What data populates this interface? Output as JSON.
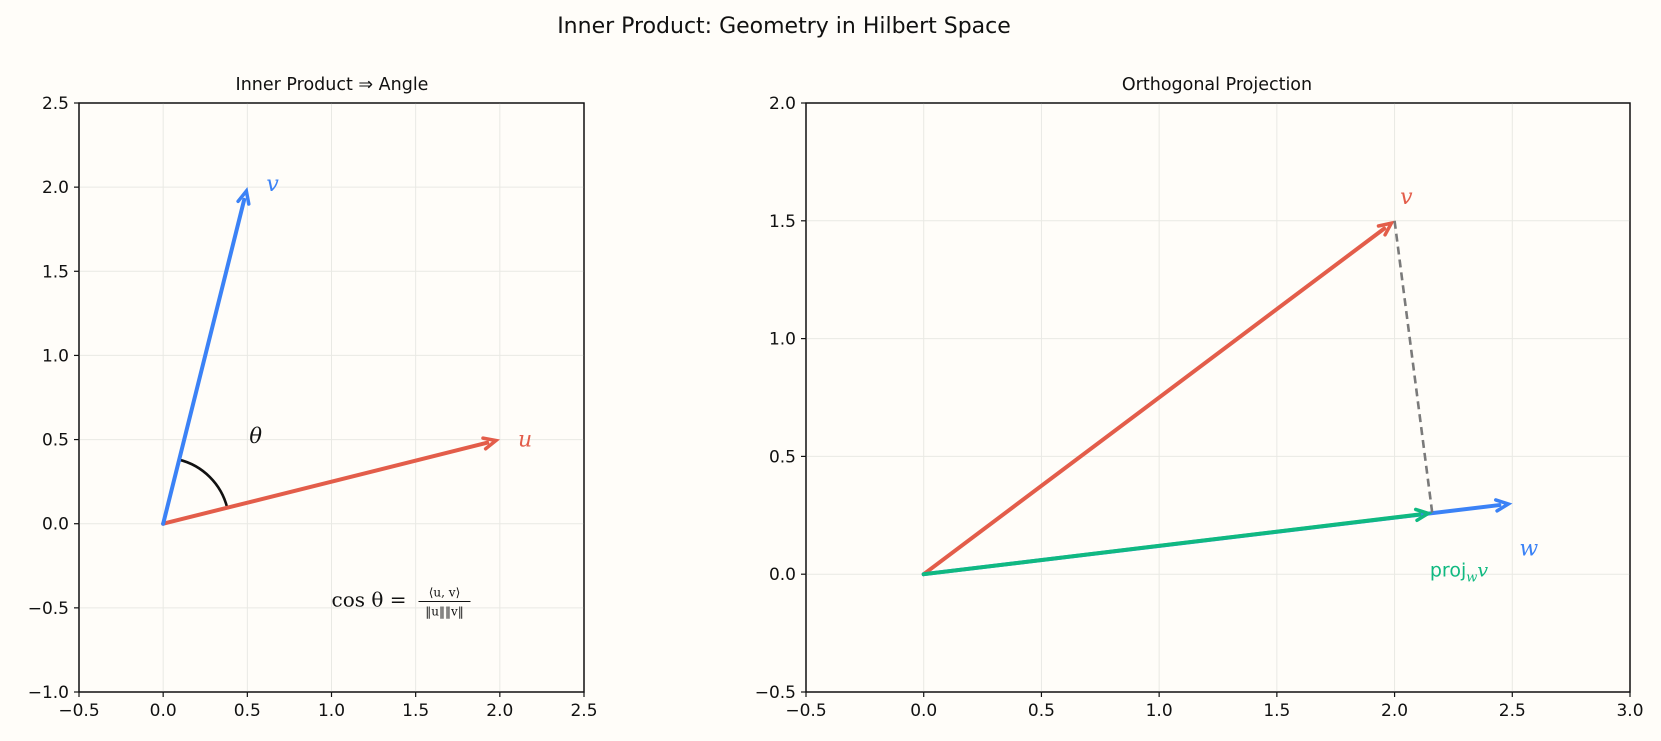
{
  "title": "Inner Product: Geometry in Hilbert Space",
  "colors": {
    "u_blue": "#3b82f6",
    "red": "#e35d4a",
    "green": "#10b981",
    "dashed": "#7a7a7a",
    "background": "#fffdf9"
  },
  "chart_data": [
    {
      "type": "vector-plot",
      "title": "Inner Product ⇒ Angle",
      "xlim": [
        -0.5,
        2.5
      ],
      "ylim": [
        -1.0,
        2.5
      ],
      "xticks": [
        "−0.5",
        "0.0",
        "0.5",
        "1.0",
        "1.5",
        "2.0",
        "2.5"
      ],
      "yticks": [
        "−1.0",
        "−0.5",
        "0.0",
        "0.5",
        "1.0",
        "1.5",
        "2.0",
        "2.5"
      ],
      "grid": true,
      "vectors": [
        {
          "name": "v",
          "from": [
            0,
            0
          ],
          "to": [
            0.5,
            2.0
          ],
          "color": "#3b82f6",
          "label_at": [
            0.65,
            2.02
          ]
        },
        {
          "name": "u",
          "from": [
            0,
            0
          ],
          "to": [
            2.0,
            0.5
          ],
          "color": "#e35d4a",
          "label_at": [
            2.15,
            0.5
          ]
        }
      ],
      "angle": {
        "label": "θ",
        "label_at": [
          0.55,
          0.52
        ]
      },
      "formula": {
        "lhs": "cos θ =",
        "numerator": "⟨u, v⟩",
        "denominator": "‖u‖‖v‖",
        "at": [
          1.0,
          -0.45
        ]
      }
    },
    {
      "type": "vector-plot",
      "title": "Orthogonal Projection",
      "xlim": [
        -0.5,
        3.0
      ],
      "ylim": [
        -0.5,
        2.0
      ],
      "xticks": [
        "−0.5",
        "0.0",
        "0.5",
        "1.0",
        "1.5",
        "2.0",
        "2.5",
        "3.0"
      ],
      "yticks": [
        "−0.5",
        "0.0",
        "0.5",
        "1.0",
        "1.5",
        "2.0"
      ],
      "grid": true,
      "vectors": [
        {
          "name": "v",
          "from": [
            0,
            0
          ],
          "to": [
            2.0,
            1.5
          ],
          "color": "#e35d4a",
          "label_at": [
            2.05,
            1.6
          ]
        },
        {
          "name": "w",
          "from": [
            0,
            0
          ],
          "to": [
            2.5,
            0.3
          ],
          "color": "#3b82f6",
          "label_at": [
            2.57,
            0.11
          ]
        },
        {
          "name": "proj_w v",
          "from": [
            0,
            0
          ],
          "to": [
            2.16,
            0.26
          ],
          "color": "#10b981",
          "label_at": [
            2.15,
            0.02
          ]
        }
      ],
      "dashed_segment": {
        "from": [
          2.0,
          1.5
        ],
        "to": [
          2.16,
          0.26
        ],
        "color": "#7a7a7a"
      },
      "proj_label": {
        "main": "proj",
        "sub": "w",
        "var": "v"
      }
    }
  ]
}
